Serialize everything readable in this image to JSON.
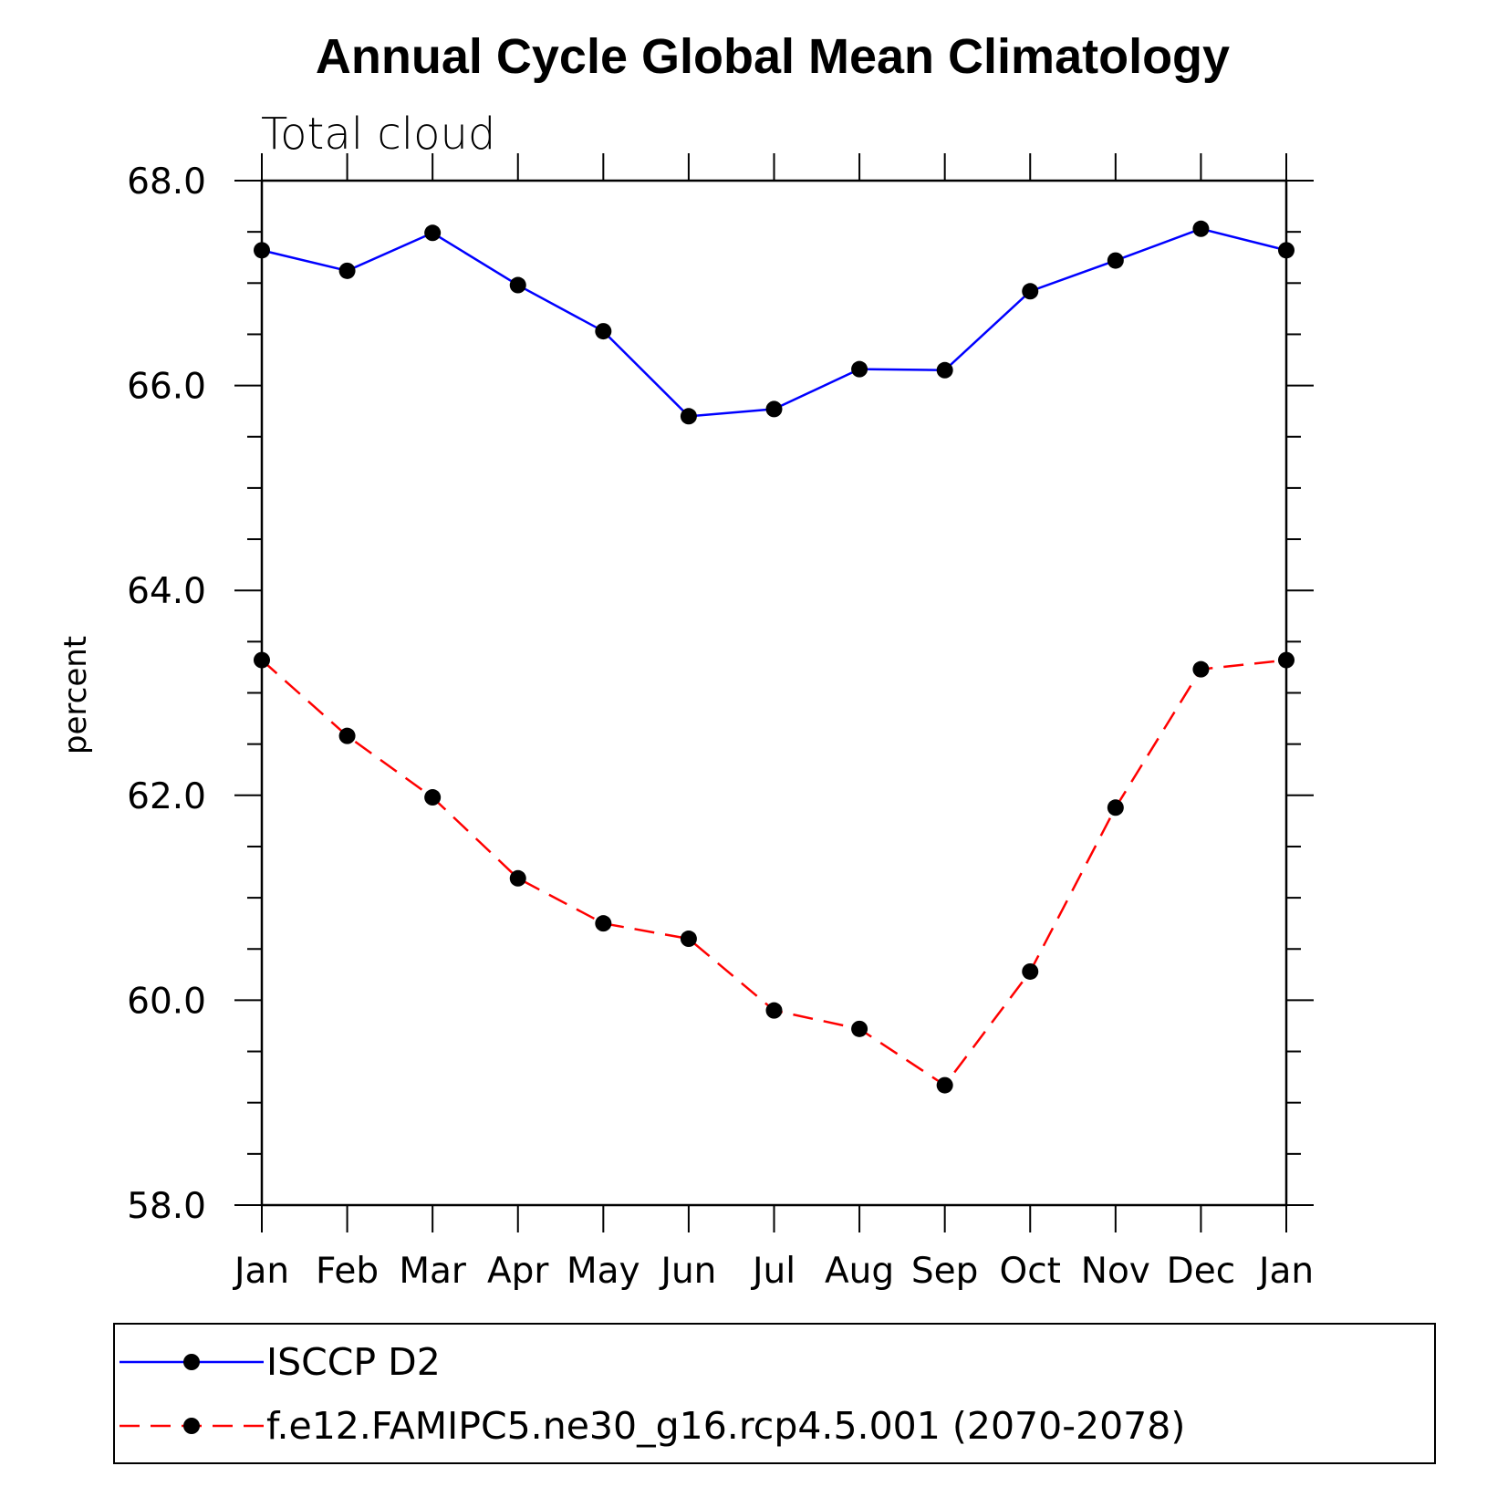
{
  "chart_data": {
    "type": "line",
    "title": "Annual Cycle Global Mean Climatology",
    "subtitle": "Total cloud",
    "xlabel": "",
    "ylabel": "percent",
    "categories": [
      "Jan",
      "Feb",
      "Mar",
      "Apr",
      "May",
      "Jun",
      "Jul",
      "Aug",
      "Sep",
      "Oct",
      "Nov",
      "Dec",
      "Jan"
    ],
    "ylim": [
      58.0,
      68.0
    ],
    "yticks": [
      "58.0",
      "60.0",
      "62.0",
      "64.0",
      "66.0",
      "68.0"
    ],
    "grid": false,
    "legend_position": "bottom",
    "series": [
      {
        "name": "ISCCP D2",
        "color": "#0000ff",
        "dash": "solid",
        "marker": "filled-circle",
        "values": [
          67.32,
          67.12,
          67.49,
          66.98,
          66.53,
          65.7,
          65.77,
          66.16,
          66.15,
          66.92,
          67.22,
          67.53,
          67.32
        ]
      },
      {
        "name": "f.e12.FAMIPC5.ne30_g16.rcp4.5.001 (2070-2078)",
        "color": "#ff0000",
        "dash": "dashed",
        "marker": "filled-circle",
        "values": [
          63.32,
          62.58,
          61.98,
          61.19,
          60.75,
          60.6,
          59.9,
          59.72,
          59.17,
          60.28,
          61.88,
          63.23,
          63.32
        ]
      }
    ]
  }
}
